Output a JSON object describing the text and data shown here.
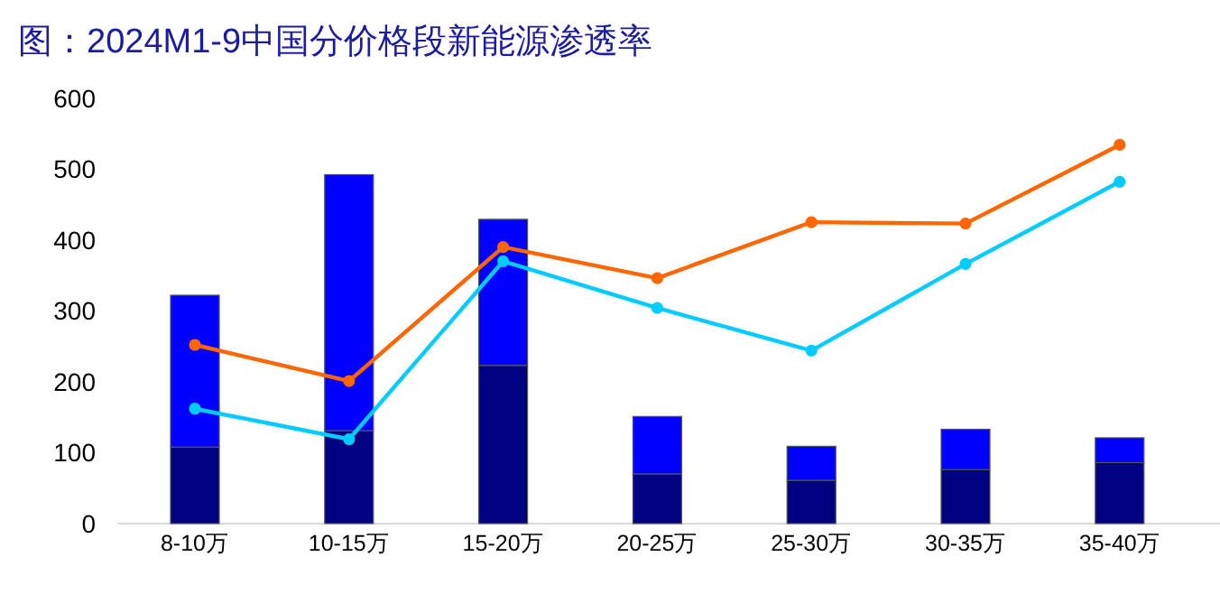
{
  "chart_data": {
    "type": "bar",
    "title": "图：2024M1-9中国分价格段新能源渗透率",
    "stacked": true,
    "categories": [
      "8-10万",
      "10-15万",
      "15-20万",
      "20-25万",
      "25-30万",
      "30-35万",
      "35-40万"
    ],
    "series": [
      {
        "color": "#000080",
        "values": [
          108,
          131,
          223,
          70,
          61,
          76,
          86
        ]
      },
      {
        "color": "#0000ff",
        "values": [
          214,
          361,
          206,
          81,
          48,
          57,
          35
        ]
      },
      {
        "type": "line",
        "color": "#ff6600",
        "values": [
          252,
          201,
          390,
          346,
          425,
          423,
          534
        ]
      },
      {
        "type": "line",
        "color": "#00ccff",
        "values": [
          162,
          119,
          370,
          304,
          244,
          366,
          482
        ]
      }
    ],
    "ylim": [
      0,
      600
    ],
    "yticks": [
      0,
      100,
      200,
      300,
      400,
      500,
      600
    ],
    "grid": false,
    "marker": "circle",
    "line_style": "solid"
  }
}
